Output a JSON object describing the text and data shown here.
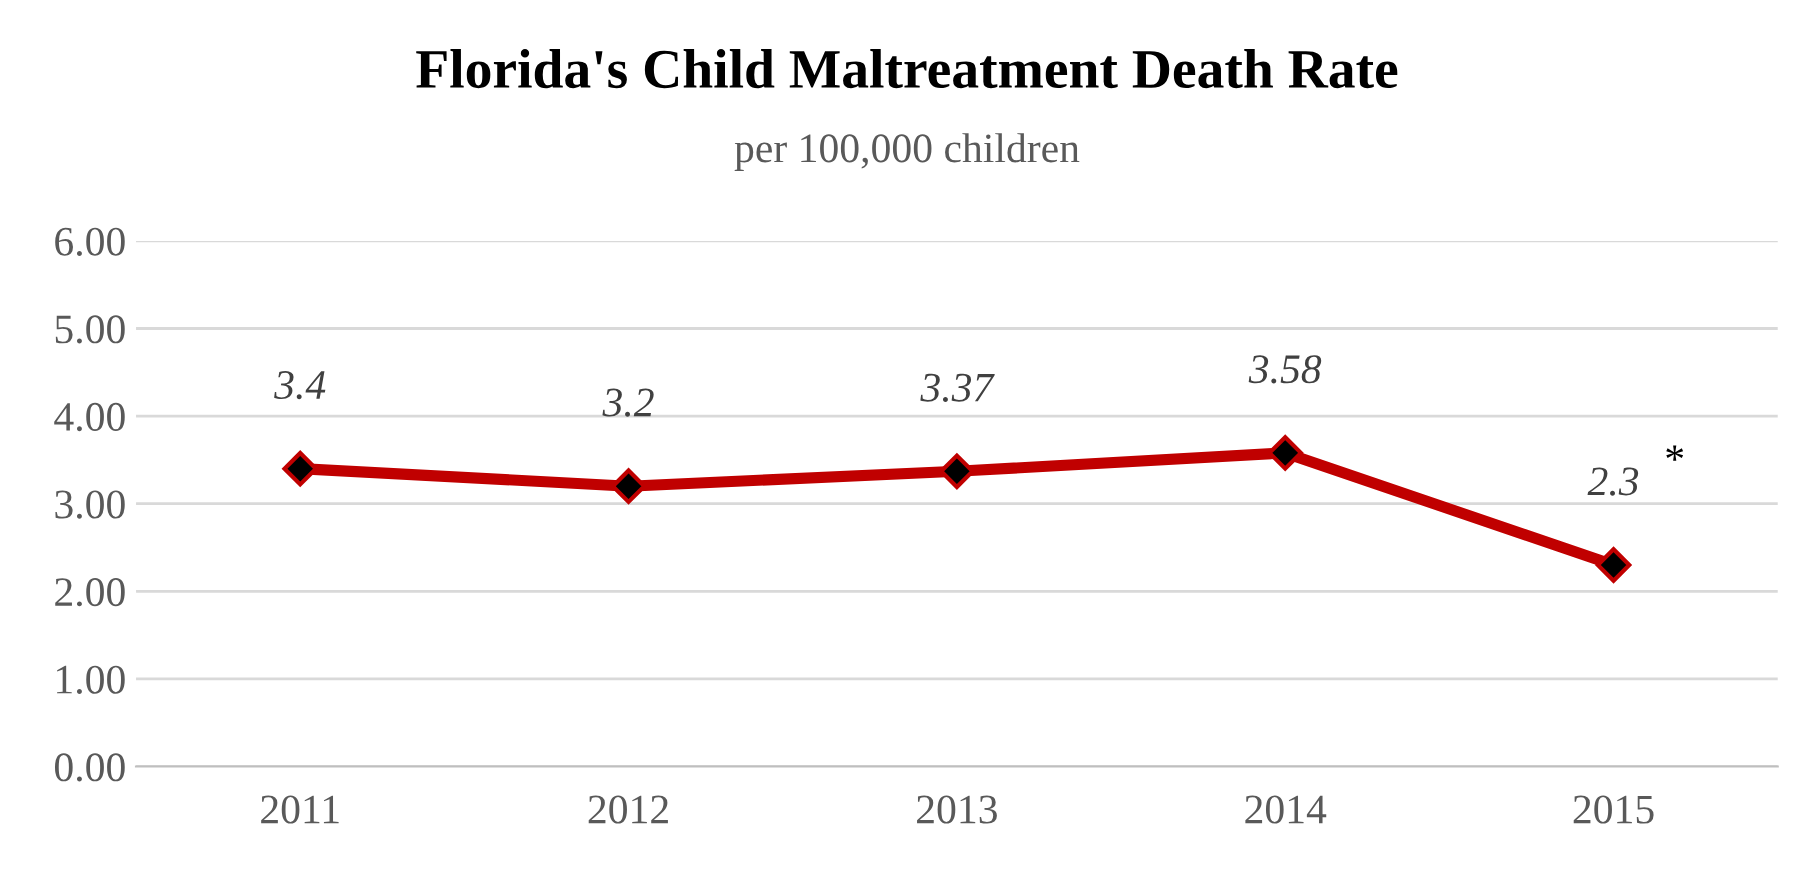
{
  "chart_data": {
    "type": "line",
    "title": "Florida's Child Maltreatment Death Rate",
    "subtitle": "per 100,000 children",
    "categories": [
      "2011",
      "2012",
      "2013",
      "2014",
      "2015"
    ],
    "series": [
      {
        "color": "#c00000",
        "values": [
          3.4,
          3.2,
          3.37,
          3.58,
          2.3
        ],
        "value_labels": [
          "3.4",
          "3.2",
          "3.37",
          "3.58",
          "2.3"
        ]
      }
    ],
    "ylim": [
      0,
      6
    ],
    "yticks": [
      {
        "value": 0,
        "label": "0.00"
      },
      {
        "value": 1,
        "label": "1.00"
      },
      {
        "value": 2,
        "label": "2.00"
      },
      {
        "value": 3,
        "label": "3.00"
      },
      {
        "value": 4,
        "label": "4.00"
      },
      {
        "value": 5,
        "label": "5.00"
      },
      {
        "value": 6,
        "label": "6.00"
      }
    ],
    "grid": "y",
    "marker": "diamond",
    "line_style": "solid",
    "annotations": [
      {
        "text": "*",
        "x": "2015",
        "y": 2.3
      }
    ]
  }
}
